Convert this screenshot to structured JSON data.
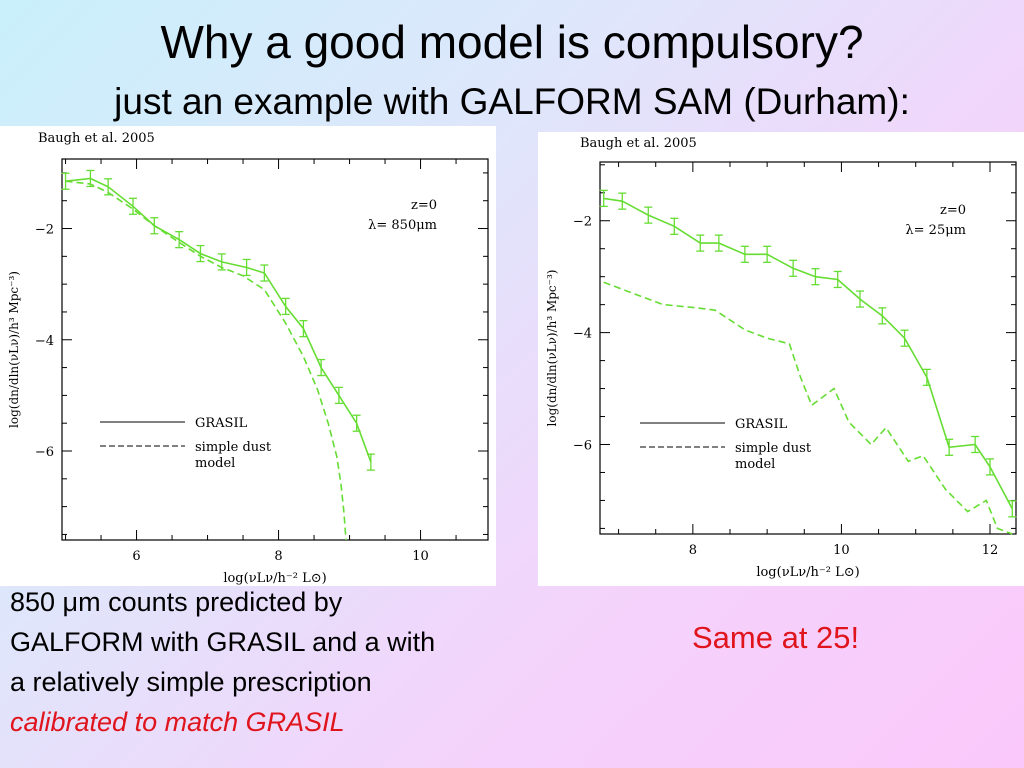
{
  "slide": {
    "title": "Why a good model is compulsory?",
    "subtitle": "just an example with GALFORM SAM (Durham):",
    "caption_left": {
      "line1": "850 μm counts predicted by",
      "line2": "GALFORM with GRASIL and a with",
      "line3": "a relatively simple prescription",
      "line4": "calibrated to match GRASIL"
    },
    "caption_right": "Same at 25!",
    "colors": {
      "title": "#000000",
      "highlight": "#e0141c",
      "curve": "#66dd33"
    }
  },
  "chart_data": [
    {
      "type": "line",
      "panel_label": "Baugh et al. 2005",
      "annotation_z": "z=0",
      "annotation_lambda": "λ= 850μm",
      "xlabel": "log(νLν/h⁻² L⊙)",
      "ylabel": "log(dn/dln(νLν)/h³ Mpc⁻³)",
      "xlim": [
        4.95,
        10.95
      ],
      "ylim": [
        -7.6,
        -0.75
      ],
      "xticks": [
        6,
        8,
        10
      ],
      "yticks": [
        -2,
        -4,
        -6
      ],
      "grid": false,
      "legend_position": "bottom-left",
      "series": [
        {
          "name": "GRASIL",
          "style": "solid",
          "errorbars": true,
          "x": [
            5.0,
            5.35,
            5.6,
            5.95,
            6.25,
            6.6,
            6.9,
            7.2,
            7.55,
            7.8,
            8.1,
            8.35,
            8.6,
            8.85,
            9.1,
            9.3
          ],
          "y": [
            -1.15,
            -1.1,
            -1.25,
            -1.6,
            -1.95,
            -2.2,
            -2.45,
            -2.6,
            -2.7,
            -2.8,
            -3.4,
            -3.8,
            -4.5,
            -5.0,
            -5.5,
            -6.2
          ]
        },
        {
          "name": "simple dust model",
          "style": "dashed",
          "errorbars": false,
          "x": [
            5.0,
            5.35,
            5.6,
            5.95,
            6.25,
            6.6,
            6.9,
            7.2,
            7.5,
            7.8,
            8.1,
            8.35,
            8.55,
            8.7,
            8.82,
            8.88,
            8.92,
            8.95
          ],
          "y": [
            -1.15,
            -1.2,
            -1.35,
            -1.65,
            -1.95,
            -2.25,
            -2.5,
            -2.7,
            -2.85,
            -3.1,
            -3.7,
            -4.3,
            -4.9,
            -5.5,
            -6.1,
            -6.6,
            -7.1,
            -7.6
          ]
        }
      ]
    },
    {
      "type": "line",
      "panel_label": "Baugh et al. 2005",
      "annotation_z": "z=0",
      "annotation_lambda": "λ= 25μm",
      "xlabel": "log(νLν/h⁻² L⊙)",
      "ylabel": "log(dn/dln(νLν)/h³ Mpc⁻³)",
      "xlim": [
        6.75,
        12.35
      ],
      "ylim": [
        -7.6,
        -0.95
      ],
      "xticks": [
        8,
        10,
        12
      ],
      "yticks": [
        -2,
        -4,
        -6
      ],
      "grid": false,
      "legend_position": "bottom-left",
      "series": [
        {
          "name": "GRASIL",
          "style": "solid",
          "errorbars": true,
          "x": [
            6.8,
            7.05,
            7.4,
            7.75,
            8.1,
            8.35,
            8.7,
            9.0,
            9.35,
            9.65,
            9.95,
            10.25,
            10.55,
            10.85,
            11.15,
            11.45,
            11.8,
            12.0,
            12.3
          ],
          "y": [
            -1.6,
            -1.65,
            -1.9,
            -2.1,
            -2.4,
            -2.4,
            -2.6,
            -2.6,
            -2.85,
            -3.0,
            -3.05,
            -3.4,
            -3.7,
            -4.1,
            -4.8,
            -6.05,
            -6.0,
            -6.4,
            -7.15
          ]
        },
        {
          "name": "simple dust model",
          "style": "dashed",
          "errorbars": false,
          "x": [
            6.8,
            7.2,
            7.6,
            8.0,
            8.3,
            8.7,
            9.0,
            9.3,
            9.45,
            9.6,
            9.9,
            10.1,
            10.4,
            10.6,
            10.9,
            11.1,
            11.4,
            11.7,
            11.95,
            12.1,
            12.3
          ],
          "y": [
            -3.1,
            -3.3,
            -3.5,
            -3.55,
            -3.6,
            -3.95,
            -4.1,
            -4.2,
            -4.8,
            -5.3,
            -5.0,
            -5.6,
            -6.0,
            -5.7,
            -6.3,
            -6.2,
            -6.8,
            -7.2,
            -7.0,
            -7.5,
            -7.6
          ]
        }
      ]
    }
  ]
}
